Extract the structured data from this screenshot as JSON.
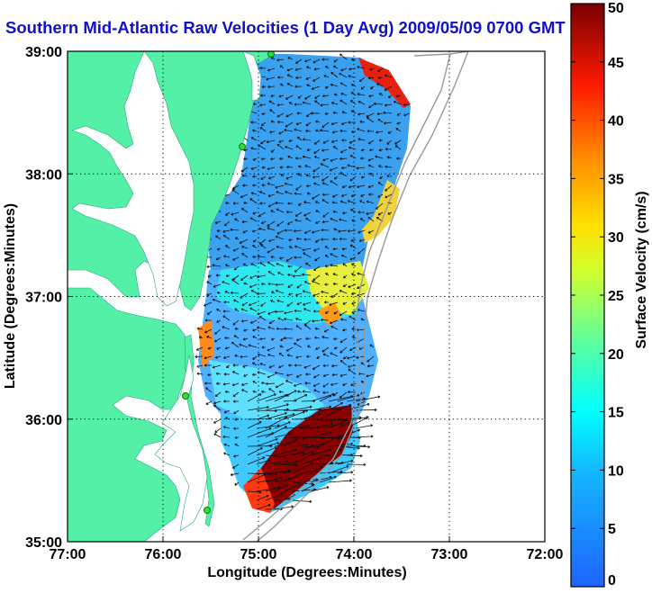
{
  "title": "Southern Mid-Atlantic Raw Velocities (1 Day Avg) 2009/05/09 0700 GMT",
  "chart_data": {
    "type": "map",
    "xlabel": "Longitude (Degrees:Minutes)",
    "ylabel": "Latitude (Degrees:Minutes)",
    "x_ticks": [
      "77:00",
      "76:00",
      "75:00",
      "74:00",
      "73:00",
      "72:00"
    ],
    "y_ticks": [
      "39:00",
      "38:00",
      "37:00",
      "36:00",
      "35:00"
    ],
    "xlim": [
      -77,
      -72
    ],
    "ylim": [
      35,
      39
    ],
    "grid": true,
    "colorbar": {
      "label": "Surface Velocity (cm/s)",
      "range": [
        0,
        50
      ],
      "ticks": [
        "50",
        "45",
        "40",
        "35",
        "30",
        "25",
        "20",
        "15",
        "10",
        "5",
        "0"
      ]
    },
    "colors": {
      "land": "#55f0a8",
      "low": "#1e64ff",
      "high": "#7a0000",
      "title": "#1111cc",
      "bathymetry": "#999999",
      "station": "#33dd33"
    }
  }
}
